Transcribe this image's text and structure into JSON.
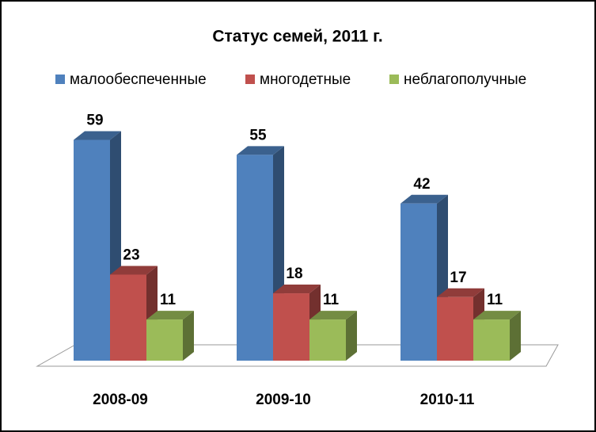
{
  "chart_data": {
    "type": "bar3d",
    "title": "Статус семей, 2011 г.",
    "categories": [
      "2008-09",
      "2009-10",
      "2010-11"
    ],
    "series": [
      {
        "name": "малообеспеченные",
        "color": "#4f81bd",
        "values": [
          59,
          55,
          42
        ]
      },
      {
        "name": "многодетные",
        "color": "#c0504d",
        "values": [
          23,
          18,
          17
        ]
      },
      {
        "name": "неблагополучные",
        "color": "#9bbb59",
        "values": [
          11,
          11,
          11
        ]
      }
    ]
  }
}
